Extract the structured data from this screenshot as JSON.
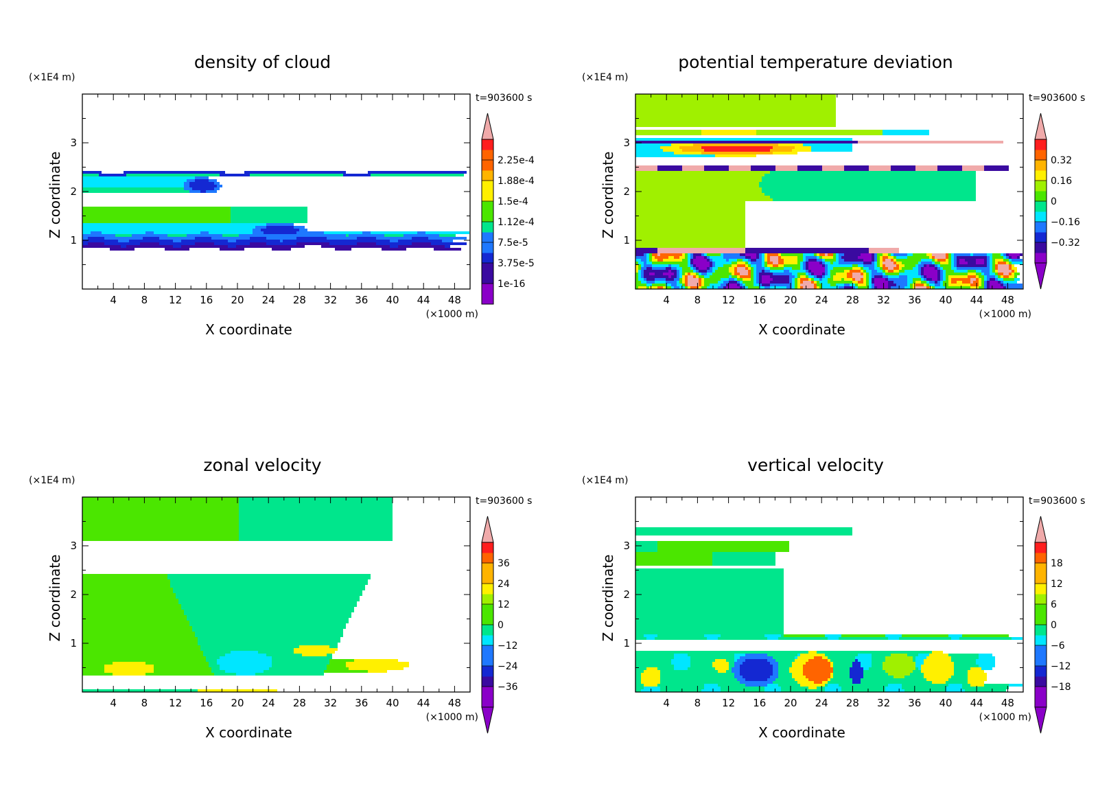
{
  "chart_data": [
    {
      "type": "heatmap",
      "title": "density of cloud",
      "xlabel": "X coordinate",
      "ylabel": "Z coordinate",
      "x_unit": "(×1000 m)",
      "y_unit": "(×1E4 m)",
      "time_label": "t=903600 s",
      "xlim": [
        0,
        50
      ],
      "ylim": [
        0,
        4
      ],
      "x_ticks": [
        4,
        8,
        12,
        16,
        20,
        24,
        28,
        32,
        36,
        40,
        44,
        48
      ],
      "y_ticks": [
        1,
        2,
        3
      ],
      "colorbar_ticks": [
        "2.25e-4",
        "1.88e-4",
        "1.5e-4",
        "1.12e-4",
        "7.5e-5",
        "3.75e-5",
        "1e-16"
      ],
      "colorbar_levels": [
        1e-16,
        3.75e-05,
        7.5e-05,
        0.000112,
        0.00015,
        0.000188,
        0.000225
      ],
      "grid": false,
      "legend": "colorbar-right"
    },
    {
      "type": "heatmap",
      "title": "potential temperature deviation",
      "xlabel": "X coordinate",
      "ylabel": "Z coordinate",
      "x_unit": "(×1000 m)",
      "y_unit": "(×1E4 m)",
      "time_label": "t=903600 s",
      "xlim": [
        0,
        50
      ],
      "ylim": [
        0,
        4
      ],
      "x_ticks": [
        4,
        8,
        12,
        16,
        20,
        24,
        28,
        32,
        36,
        40,
        44,
        48
      ],
      "y_ticks": [
        1,
        2,
        3
      ],
      "colorbar_ticks": [
        "0.32",
        "0.16",
        "0",
        "−0.16",
        "−0.32"
      ],
      "colorbar_levels": [
        -0.32,
        -0.16,
        0,
        0.16,
        0.32
      ],
      "grid": false,
      "legend": "colorbar-right"
    },
    {
      "type": "heatmap",
      "title": "zonal velocity",
      "xlabel": "X coordinate",
      "ylabel": "Z coordinate",
      "x_unit": "(×1000 m)",
      "y_unit": "(×1E4 m)",
      "time_label": "t=903600 s",
      "xlim": [
        0,
        50
      ],
      "ylim": [
        0,
        4
      ],
      "x_ticks": [
        4,
        8,
        12,
        16,
        20,
        24,
        28,
        32,
        36,
        40,
        44,
        48
      ],
      "y_ticks": [
        1,
        2,
        3
      ],
      "colorbar_ticks": [
        "36",
        "24",
        "12",
        "0",
        "−12",
        "−24",
        "−36"
      ],
      "colorbar_levels": [
        -36,
        -24,
        -12,
        0,
        12,
        24,
        36
      ],
      "grid": false,
      "legend": "colorbar-right"
    },
    {
      "type": "heatmap",
      "title": "vertical velocity",
      "xlabel": "X coordinate",
      "ylabel": "Z coordinate",
      "x_unit": "(×1000 m)",
      "y_unit": "(×1E4 m)",
      "time_label": "t=903600 s",
      "xlim": [
        0,
        50
      ],
      "ylim": [
        0,
        4
      ],
      "x_ticks": [
        4,
        8,
        12,
        16,
        20,
        24,
        28,
        32,
        36,
        40,
        44,
        48
      ],
      "y_ticks": [
        1,
        2,
        3
      ],
      "colorbar_ticks": [
        "18",
        "12",
        "6",
        "0",
        "−6",
        "−12",
        "−18"
      ],
      "colorbar_levels": [
        -18,
        -12,
        -6,
        0,
        6,
        12,
        18
      ],
      "grid": false,
      "legend": "colorbar-right"
    }
  ],
  "colors": {
    "colormap": [
      "#8a00c8",
      "#3a0aa0",
      "#1428d2",
      "#1e78ff",
      "#00e6ff",
      "#00e68c",
      "#4be600",
      "#a0f000",
      "#fff000",
      "#ffb400",
      "#ff6400",
      "#ff1e1e",
      "#f0aaaa"
    ]
  }
}
